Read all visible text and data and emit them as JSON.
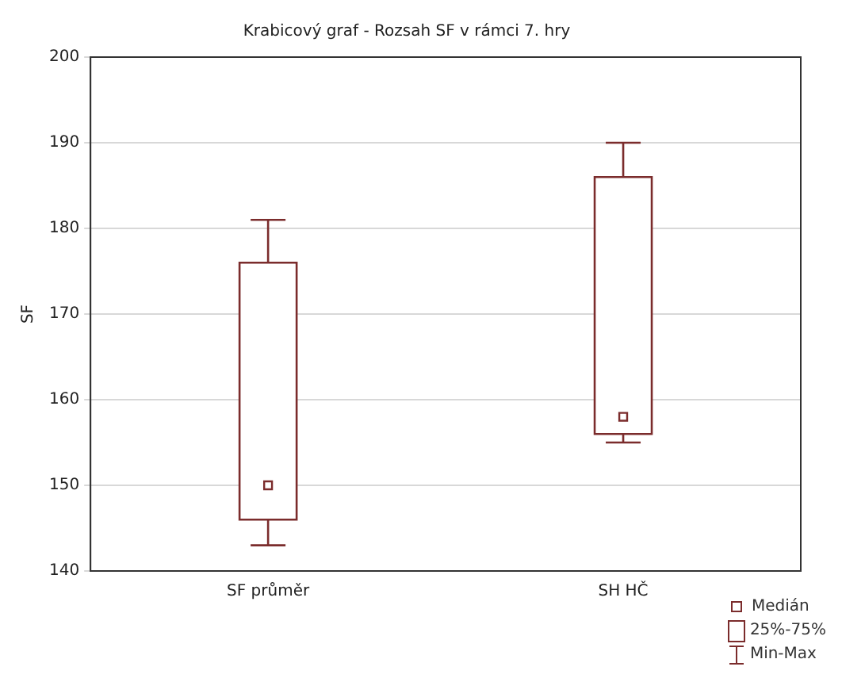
{
  "chart_data": {
    "type": "box",
    "title": "Krabicový graf - Rozsah SF v rámci 7. hry",
    "ylabel": "SF",
    "categories": [
      "SF průměr",
      "SH HČ"
    ],
    "boxes": [
      {
        "low": 143,
        "q1": 146,
        "median": 150,
        "q3": 176,
        "high": 181
      },
      {
        "low": 155,
        "q1": 156,
        "median": 158,
        "q3": 186,
        "high": 190
      }
    ],
    "color": "#7b2c2c",
    "ylim": [
      140,
      200
    ],
    "yticks": [
      140,
      150,
      160,
      170,
      180,
      190,
      200
    ],
    "grid": "y",
    "annotations": [
      "Medián",
      "25%-75%",
      "Min-Max"
    ]
  }
}
